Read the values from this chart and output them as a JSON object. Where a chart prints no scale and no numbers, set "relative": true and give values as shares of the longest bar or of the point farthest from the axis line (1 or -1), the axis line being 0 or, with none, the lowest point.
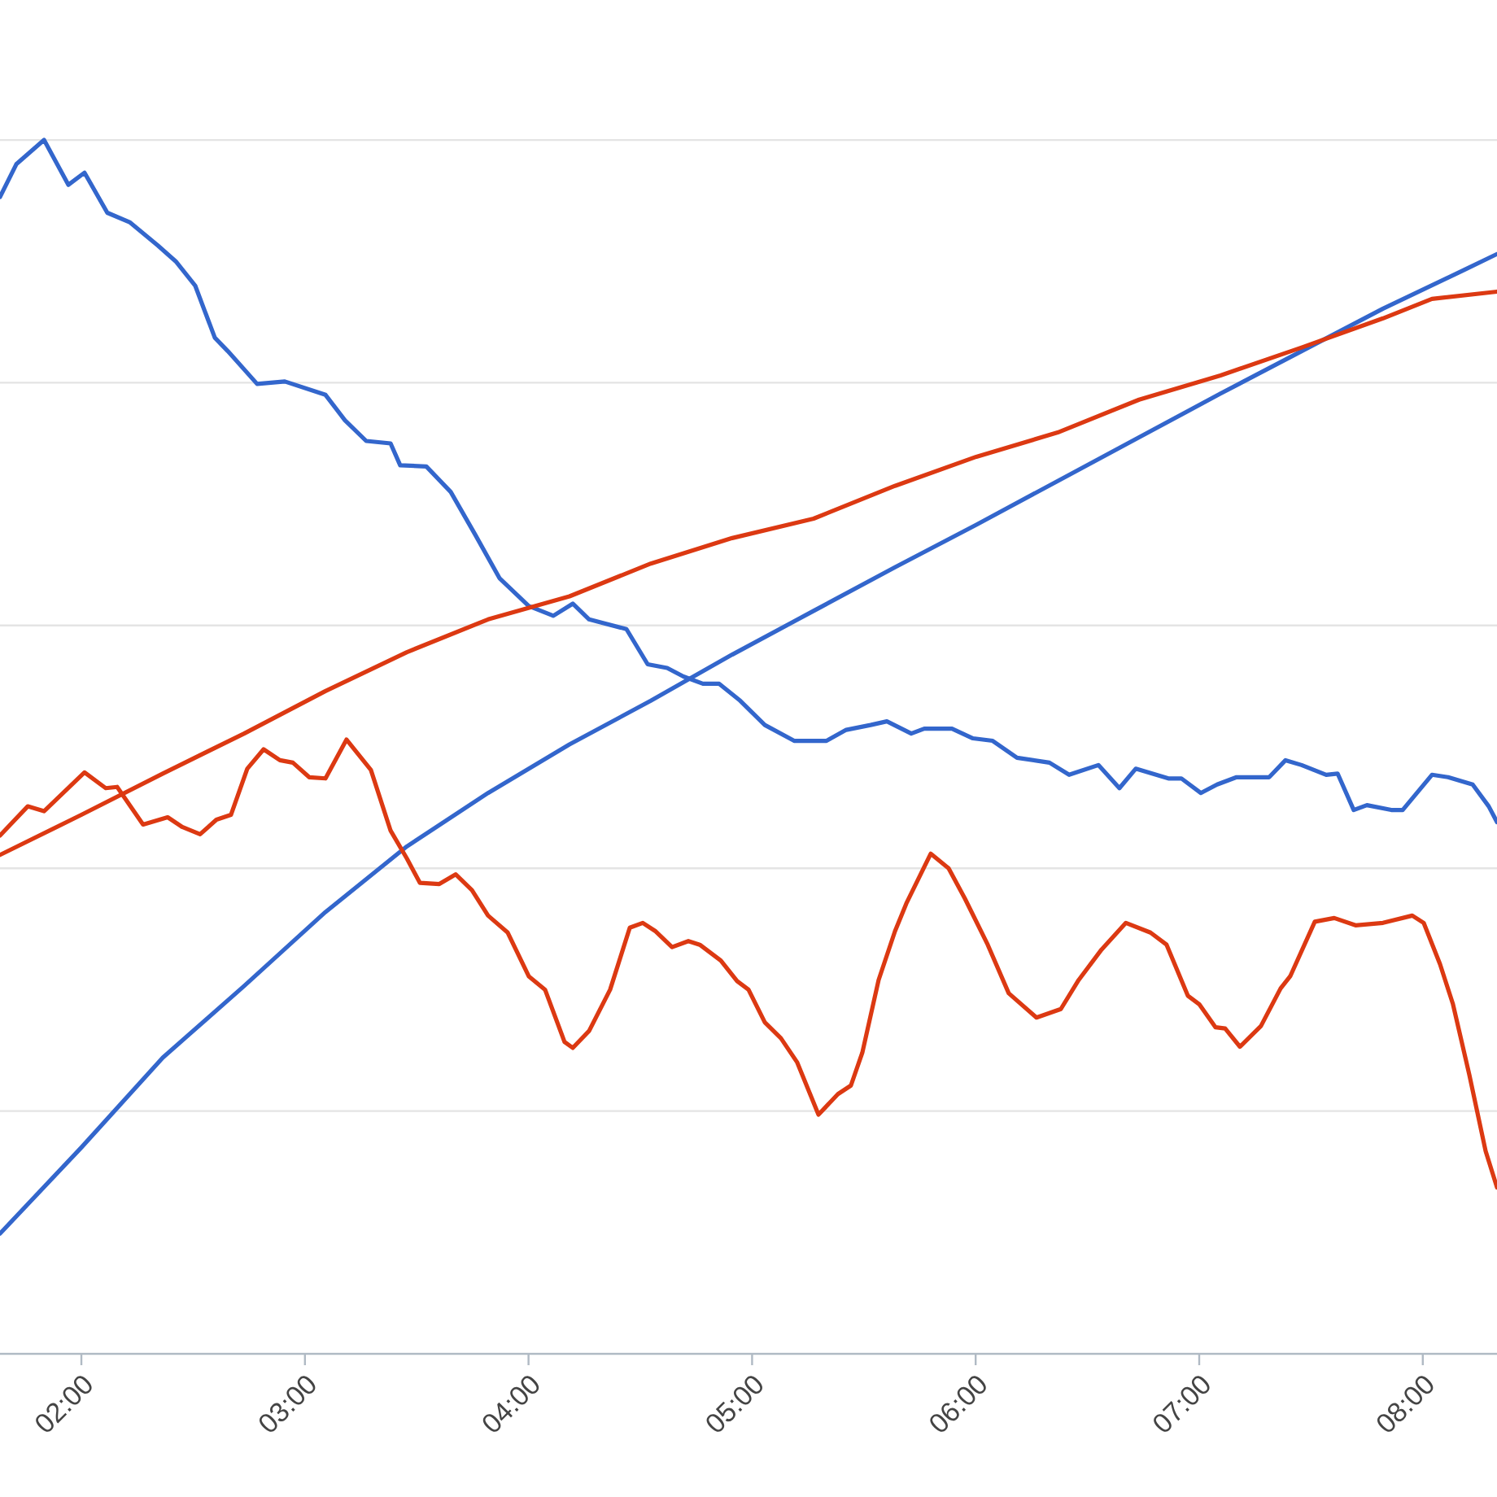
{
  "chart_data": {
    "type": "line",
    "relative": true,
    "grid": "y",
    "xlim": [
      1.636,
      8.332
    ],
    "xticks": [
      {
        "value": 2,
        "label": "02:00"
      },
      {
        "value": 3,
        "label": "03:00"
      },
      {
        "value": 4,
        "label": "04:00"
      },
      {
        "value": 5,
        "label": "05:00"
      },
      {
        "value": 6,
        "label": "06:00"
      },
      {
        "value": 7,
        "label": "07:00"
      },
      {
        "value": 8,
        "label": "08:00"
      }
    ],
    "series": [
      {
        "color": "#3366cc",
        "x": [
          1.636,
          1.709,
          1.833,
          1.942,
          2.014,
          2.116,
          2.218,
          2.342,
          2.422,
          2.509,
          2.597,
          2.655,
          2.786,
          2.91,
          3.092,
          3.179,
          3.274,
          3.383,
          3.426,
          3.543,
          3.652,
          3.761,
          3.87,
          4.001,
          4.111,
          4.198,
          4.271,
          4.438,
          4.533,
          4.62,
          4.693,
          4.78,
          4.853,
          4.947,
          5.057,
          5.188,
          5.333,
          5.421,
          5.53,
          5.603,
          5.712,
          5.77,
          5.894,
          5.988,
          6.076,
          6.185,
          6.33,
          6.418,
          6.549,
          6.643,
          6.716,
          6.789,
          6.862,
          6.92,
          7.007,
          7.08,
          7.167,
          7.313,
          7.386,
          7.458,
          7.568,
          7.619,
          7.691,
          7.75,
          7.859,
          7.91,
          8.041,
          8.113,
          8.223,
          8.295,
          8.332
        ],
        "values": [
          0.953,
          0.98,
          1.0,
          0.963,
          0.973,
          0.94,
          0.932,
          0.913,
          0.9,
          0.88,
          0.837,
          0.826,
          0.799,
          0.801,
          0.79,
          0.769,
          0.752,
          0.75,
          0.732,
          0.731,
          0.71,
          0.675,
          0.639,
          0.616,
          0.608,
          0.618,
          0.605,
          0.597,
          0.568,
          0.565,
          0.558,
          0.552,
          0.552,
          0.538,
          0.518,
          0.505,
          0.505,
          0.514,
          0.518,
          0.521,
          0.511,
          0.515,
          0.515,
          0.507,
          0.505,
          0.491,
          0.487,
          0.477,
          0.485,
          0.466,
          0.482,
          0.478,
          0.474,
          0.474,
          0.462,
          0.469,
          0.475,
          0.475,
          0.489,
          0.485,
          0.477,
          0.478,
          0.448,
          0.452,
          0.448,
          0.448,
          0.477,
          0.475,
          0.469,
          0.451,
          0.438
        ]
      },
      {
        "color": "#3366cc",
        "x": [
          1.636,
          2.0,
          2.364,
          2.728,
          3.092,
          3.456,
          3.819,
          4.183,
          4.547,
          4.911,
          5.275,
          5.639,
          6.003,
          6.367,
          6.731,
          7.095,
          7.458,
          7.822,
          8.186,
          8.332
        ],
        "values": [
          0.099,
          0.17,
          0.244,
          0.303,
          0.364,
          0.418,
          0.462,
          0.502,
          0.538,
          0.576,
          0.612,
          0.648,
          0.683,
          0.719,
          0.755,
          0.791,
          0.826,
          0.861,
          0.893,
          0.906
        ]
      },
      {
        "color": "#dc3912",
        "x": [
          1.636,
          2.0,
          2.364,
          2.728,
          3.092,
          3.456,
          3.819,
          4.183,
          4.547,
          4.911,
          5.275,
          5.639,
          6.003,
          6.367,
          6.731,
          7.095,
          7.458,
          7.822,
          8.041,
          8.332
        ],
        "values": [
          0.411,
          0.444,
          0.478,
          0.511,
          0.546,
          0.578,
          0.605,
          0.624,
          0.651,
          0.672,
          0.688,
          0.715,
          0.739,
          0.759,
          0.786,
          0.806,
          0.829,
          0.853,
          0.869,
          0.875
        ]
      },
      {
        "color": "#dc3912",
        "x": [
          1.636,
          1.76,
          1.833,
          2.014,
          2.109,
          2.16,
          2.276,
          2.386,
          2.451,
          2.531,
          2.604,
          2.669,
          2.742,
          2.815,
          2.888,
          2.946,
          3.019,
          3.092,
          3.186,
          3.295,
          3.383,
          3.456,
          3.514,
          3.601,
          3.674,
          3.747,
          3.819,
          3.907,
          4.001,
          4.074,
          4.161,
          4.198,
          4.271,
          4.365,
          4.453,
          4.511,
          4.569,
          4.642,
          4.715,
          4.766,
          4.86,
          4.933,
          4.984,
          5.057,
          5.129,
          5.202,
          5.297,
          5.384,
          5.442,
          5.493,
          5.566,
          5.639,
          5.69,
          5.799,
          5.879,
          5.952,
          6.054,
          6.148,
          6.272,
          6.381,
          6.461,
          6.563,
          6.672,
          6.782,
          6.854,
          6.949,
          7.0,
          7.073,
          7.116,
          7.182,
          7.276,
          7.364,
          7.407,
          7.517,
          7.604,
          7.699,
          7.822,
          7.953,
          8.004,
          8.077,
          8.135,
          8.208,
          8.281,
          8.332
        ],
        "values": [
          0.427,
          0.451,
          0.447,
          0.479,
          0.466,
          0.467,
          0.436,
          0.442,
          0.434,
          0.428,
          0.44,
          0.444,
          0.482,
          0.498,
          0.489,
          0.487,
          0.475,
          0.474,
          0.506,
          0.481,
          0.431,
          0.408,
          0.388,
          0.387,
          0.395,
          0.382,
          0.361,
          0.347,
          0.311,
          0.3,
          0.257,
          0.252,
          0.266,
          0.3,
          0.351,
          0.355,
          0.348,
          0.335,
          0.34,
          0.337,
          0.324,
          0.307,
          0.3,
          0.273,
          0.26,
          0.24,
          0.197,
          0.214,
          0.221,
          0.248,
          0.308,
          0.348,
          0.371,
          0.412,
          0.4,
          0.375,
          0.337,
          0.297,
          0.277,
          0.284,
          0.308,
          0.333,
          0.355,
          0.347,
          0.337,
          0.295,
          0.288,
          0.269,
          0.268,
          0.253,
          0.27,
          0.301,
          0.311,
          0.356,
          0.359,
          0.353,
          0.355,
          0.361,
          0.355,
          0.321,
          0.288,
          0.23,
          0.167,
          0.137
        ]
      }
    ]
  }
}
